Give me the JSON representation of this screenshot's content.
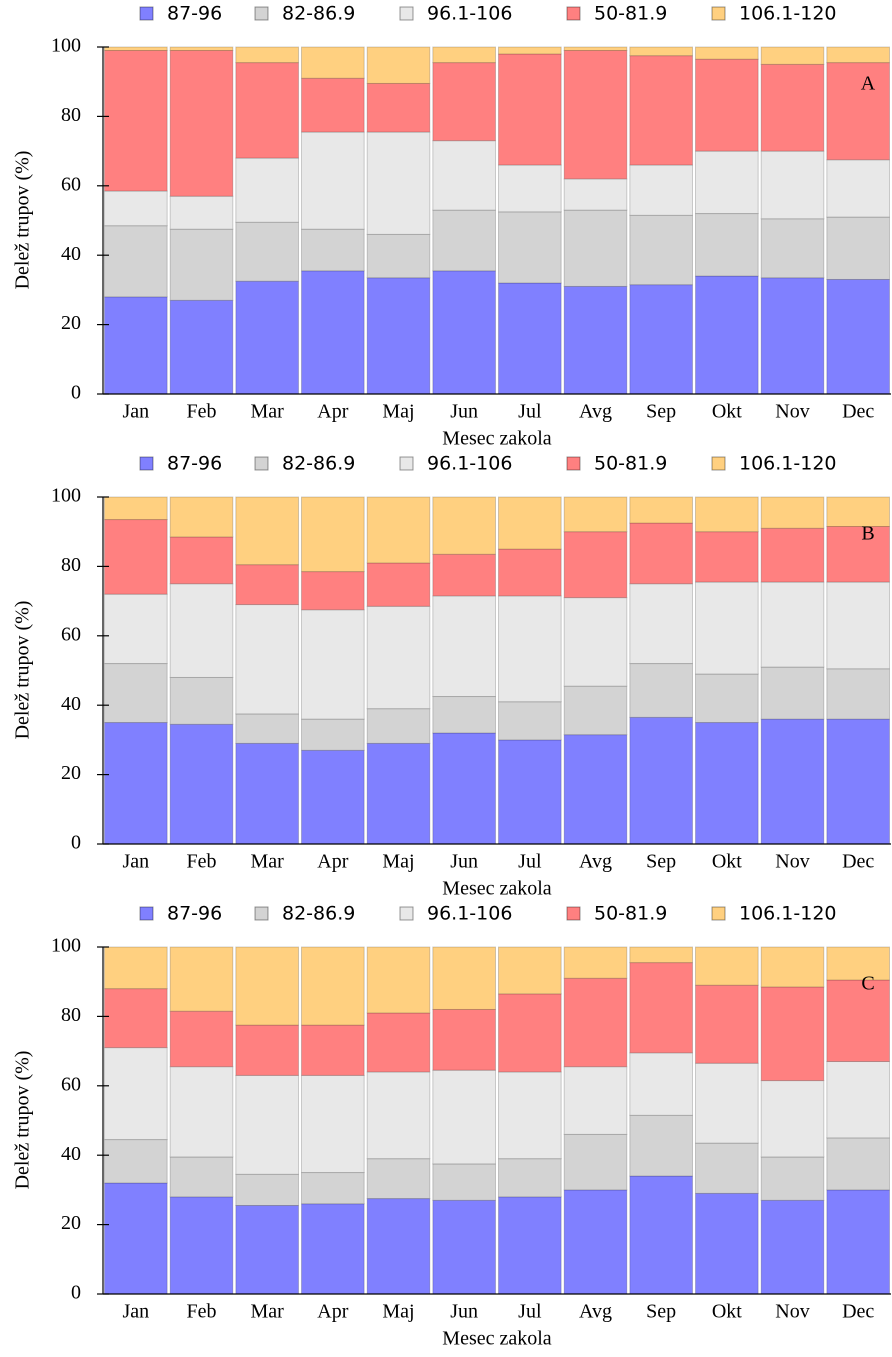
{
  "chart_data": [
    {
      "type": "bar",
      "stacked": true,
      "annotation": "A",
      "xlabel": "Mesec zakola",
      "ylabel": "Delež trupov (%)",
      "categories": [
        "Jan",
        "Feb",
        "Mar",
        "Apr",
        "Maj",
        "Jun",
        "Jul",
        "Avg",
        "Sep",
        "Okt",
        "Nov",
        "Dec"
      ],
      "ylim": [
        0,
        100
      ],
      "yticks": [
        0,
        20,
        40,
        60,
        80,
        100
      ],
      "series": [
        {
          "name": "87-96",
          "color": "#8080ff",
          "values": [
            28,
            27,
            32.5,
            35.5,
            33.5,
            35.5,
            32,
            31,
            31.5,
            34,
            33.5,
            33
          ]
        },
        {
          "name": "82-86.9",
          "color": "#d3d3d3",
          "values": [
            20.5,
            20.5,
            17,
            12,
            12.5,
            17.5,
            20.5,
            22,
            20,
            18,
            17,
            18
          ]
        },
        {
          "name": "96.1-106",
          "color": "#e8e8e8",
          "values": [
            10,
            9.5,
            18.5,
            28,
            29.5,
            20,
            13.5,
            9,
            14.5,
            18,
            19.5,
            16.5
          ]
        },
        {
          "name": "50-81.9",
          "color": "#ff8080",
          "values": [
            40.5,
            42,
            27.5,
            15.5,
            14,
            22.5,
            32,
            37,
            31.5,
            26.5,
            25,
            28
          ]
        },
        {
          "name": "106.1-120",
          "color": "#ffd080",
          "values": [
            1,
            1,
            4.5,
            9,
            10.5,
            4.5,
            2,
            1,
            2.5,
            3.5,
            5,
            4.5
          ]
        }
      ]
    },
    {
      "type": "bar",
      "stacked": true,
      "annotation": "B",
      "xlabel": "Mesec zakola",
      "ylabel": "Delež trupov (%)",
      "categories": [
        "Jan",
        "Feb",
        "Mar",
        "Apr",
        "Maj",
        "Jun",
        "Jul",
        "Avg",
        "Sep",
        "Okt",
        "Nov",
        "Dec"
      ],
      "ylim": [
        0,
        100
      ],
      "yticks": [
        0,
        20,
        40,
        60,
        80,
        100
      ],
      "series": [
        {
          "name": "87-96",
          "color": "#8080ff",
          "values": [
            35,
            34.5,
            29,
            27,
            29,
            32,
            30,
            31.5,
            36.5,
            35,
            36,
            36
          ]
        },
        {
          "name": "82-86.9",
          "color": "#d3d3d3",
          "values": [
            17,
            13.5,
            8.5,
            9,
            10,
            10.5,
            11,
            14,
            15.5,
            14,
            15,
            14.5
          ]
        },
        {
          "name": "96.1-106",
          "color": "#e8e8e8",
          "values": [
            20,
            27,
            31.5,
            31.5,
            29.5,
            29,
            30.5,
            25.5,
            23,
            26.5,
            24.5,
            25
          ]
        },
        {
          "name": "50-81.9",
          "color": "#ff8080",
          "values": [
            21.5,
            13.5,
            11.5,
            11,
            12.5,
            12,
            13.5,
            19,
            17.5,
            14.5,
            15.5,
            16
          ]
        },
        {
          "name": "106.1-120",
          "color": "#ffd080",
          "values": [
            6.5,
            11.5,
            19.5,
            21.5,
            19,
            16.5,
            15,
            10,
            7.5,
            10,
            9,
            8.5
          ]
        }
      ]
    },
    {
      "type": "bar",
      "stacked": true,
      "annotation": "C",
      "xlabel": "Mesec zakola",
      "ylabel": "Delež trupov (%)",
      "categories": [
        "Jan",
        "Feb",
        "Mar",
        "Apr",
        "Maj",
        "Jun",
        "Jul",
        "Avg",
        "Sep",
        "Okt",
        "Nov",
        "Dec"
      ],
      "ylim": [
        0,
        100
      ],
      "yticks": [
        0,
        20,
        40,
        60,
        80,
        100
      ],
      "series": [
        {
          "name": "87-96",
          "color": "#8080ff",
          "values": [
            32,
            28,
            25.5,
            26,
            27.5,
            27,
            28,
            30,
            34,
            29,
            27,
            30
          ]
        },
        {
          "name": "82-86.9",
          "color": "#d3d3d3",
          "values": [
            12.5,
            11.5,
            9,
            9,
            11.5,
            10.5,
            11,
            16,
            17.5,
            14.5,
            12.5,
            15
          ]
        },
        {
          "name": "96.1-106",
          "color": "#e8e8e8",
          "values": [
            26.5,
            26,
            28.5,
            28,
            25,
            27,
            25,
            19.5,
            18,
            23,
            22,
            22
          ]
        },
        {
          "name": "50-81.9",
          "color": "#ff8080",
          "values": [
            17,
            16,
            14.5,
            14.5,
            17,
            17.5,
            22.5,
            25.5,
            26,
            22.5,
            27,
            23.5
          ]
        },
        {
          "name": "106.1-120",
          "color": "#ffd080",
          "values": [
            12,
            18.5,
            22.5,
            22.5,
            19,
            18,
            13.5,
            9,
            4.5,
            11,
            11.5,
            9.5
          ]
        }
      ]
    }
  ]
}
